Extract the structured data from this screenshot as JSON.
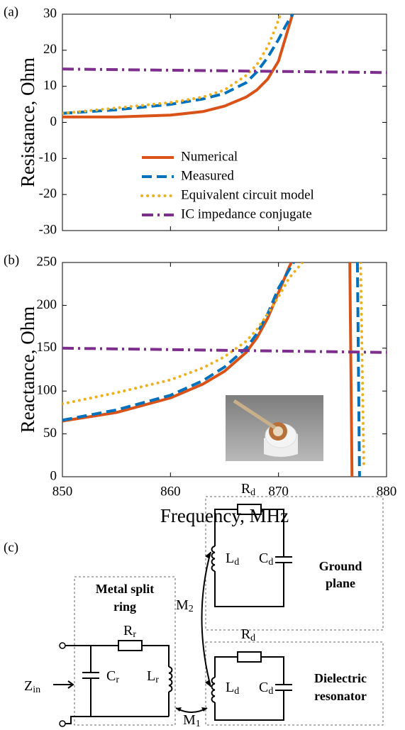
{
  "chart_data": [
    {
      "type": "line",
      "label": "(a)",
      "ylabel": "Resistance, Ohm",
      "xlim": [
        850,
        880
      ],
      "ylim": [
        -30,
        30
      ],
      "yticks": [
        -30,
        -20,
        -10,
        0,
        10,
        20,
        30
      ],
      "legend": "lower center",
      "series": [
        {
          "name": "Numerical",
          "color": "#d95319",
          "style": "solid",
          "x": [
            850,
            855,
            860,
            863,
            865,
            867,
            868,
            869,
            870,
            870.5,
            871,
            871.3
          ],
          "values": [
            1.5,
            1.5,
            2,
            3,
            4.5,
            7,
            9,
            12,
            17,
            22,
            27,
            30
          ]
        },
        {
          "name": "Measured",
          "color": "#0072bd",
          "style": "dashed",
          "x": [
            850,
            855,
            860,
            863,
            865,
            867,
            868,
            869,
            870,
            870.7,
            871.3
          ],
          "values": [
            2.5,
            3.5,
            5,
            6.5,
            8,
            11,
            14,
            18,
            23,
            27,
            30
          ]
        },
        {
          "name": "Equivalent circuit model",
          "color": "#edb120",
          "style": "dotted",
          "x": [
            850,
            855,
            860,
            863,
            865,
            867,
            868,
            869,
            869.7,
            870.2
          ],
          "values": [
            2.5,
            4,
            5.5,
            7,
            9,
            13,
            16,
            21,
            26,
            30
          ]
        },
        {
          "name": "IC impedance conjugate",
          "color": "#7e2f8e",
          "style": "dashdot",
          "x": [
            850,
            880
          ],
          "values": [
            14.8,
            13.8
          ]
        }
      ]
    },
    {
      "type": "line",
      "label": "(b)",
      "ylabel": "Reactance, Ohm",
      "xlabel": "Frequency, MHz",
      "xlim": [
        850,
        880
      ],
      "xticks": [
        850,
        860,
        870,
        880
      ],
      "ylim": [
        0,
        250
      ],
      "yticks": [
        0,
        50,
        100,
        150,
        200,
        250
      ],
      "series": [
        {
          "color": "#d95319",
          "style": "solid",
          "x": [
            850,
            855,
            860,
            863,
            865,
            867,
            868,
            869,
            870,
            871,
            871.2,
            874,
            876.6,
            876.8
          ],
          "values": [
            65,
            75,
            92,
            108,
            123,
            145,
            162,
            185,
            215,
            245,
            250,
            null,
            250,
            0
          ]
        },
        {
          "color": "#0072bd",
          "style": "dashed",
          "x": [
            850,
            855,
            860,
            863,
            865,
            867,
            868,
            869,
            870,
            871,
            871.4,
            874,
            877.3,
            877.5
          ],
          "values": [
            66,
            78,
            95,
            112,
            128,
            150,
            167,
            190,
            220,
            242,
            250,
            null,
            250,
            0
          ]
        },
        {
          "color": "#edb120",
          "style": "dotted",
          "x": [
            850,
            855,
            860,
            863,
            865,
            867,
            868,
            869,
            870,
            871,
            872.2,
            875,
            877.6,
            877.9
          ],
          "values": [
            85,
            98,
            113,
            127,
            140,
            158,
            172,
            190,
            210,
            232,
            250,
            null,
            250,
            10
          ]
        },
        {
          "color": "#7e2f8e",
          "style": "dashdot",
          "x": [
            850,
            880
          ],
          "values": [
            150,
            145
          ]
        }
      ]
    }
  ],
  "diagram": {
    "label": "(c)",
    "blocks": {
      "ring": [
        "Metal split",
        "ring"
      ],
      "ground": [
        "Ground",
        "plane"
      ],
      "dielectric": [
        "Dielectric",
        "resonator"
      ]
    },
    "components": {
      "Rr": {
        "symbol": "R",
        "sub": "r"
      },
      "Cr": {
        "symbol": "C",
        "sub": "r"
      },
      "Lr": {
        "symbol": "L",
        "sub": "r"
      },
      "Rd": {
        "symbol": "R",
        "sub": "d"
      },
      "Ld": {
        "symbol": "L",
        "sub": "d"
      },
      "Cd": {
        "symbol": "C",
        "sub": "d"
      },
      "M1": {
        "symbol": "M",
        "sub": "1"
      },
      "M2": {
        "symbol": "M",
        "sub": "2"
      },
      "Zin": {
        "symbol": "Z",
        "sub": "in"
      }
    }
  }
}
